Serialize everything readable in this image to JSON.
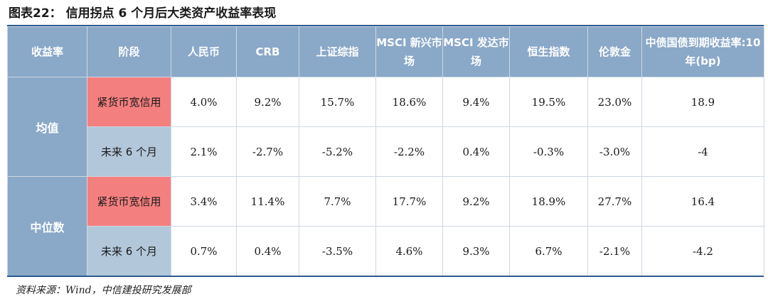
{
  "title": "图表22： 信用拐点 6 个月后大类资产收益率表现",
  "source": "资料来源：Wind，中信建投研究发展部",
  "table": {
    "headers": [
      "收益率",
      "阶段",
      "人民币",
      "CRB",
      "上证综指",
      "MSCI 新兴市场",
      "MSCI 发达市场",
      "恒生指数",
      "伦敦金",
      "中债国债到期收益率:10 年(bp)"
    ],
    "groups": [
      {
        "name": "均值",
        "rows": [
          {
            "stage": "紧货币宽信用",
            "values": [
              "4.0%",
              "9.2%",
              "15.7%",
              "18.6%",
              "9.4%",
              "19.5%",
              "23.0%",
              "18.9"
            ]
          },
          {
            "stage": "未来 6 个月",
            "values": [
              "2.1%",
              "-2.7%",
              "-5.2%",
              "-2.2%",
              "0.4%",
              "-0.3%",
              "-3.0%",
              "-4"
            ]
          }
        ]
      },
      {
        "name": "中位数",
        "rows": [
          {
            "stage": "紧货币宽信用",
            "values": [
              "3.4%",
              "11.4%",
              "7.7%",
              "17.7%",
              "9.2%",
              "18.9%",
              "27.7%",
              "16.4"
            ]
          },
          {
            "stage": "未来 6 个月",
            "values": [
              "0.7%",
              "0.4%",
              "-3.5%",
              "4.6%",
              "9.3%",
              "6.7%",
              "-2.1%",
              "-4.2"
            ]
          }
        ]
      }
    ]
  },
  "colors": {
    "header_bg": "#8aa8c8",
    "stage_tight": "#f47f7f",
    "stage_next": "#b2c8da",
    "rule": "#2b5b8f"
  }
}
